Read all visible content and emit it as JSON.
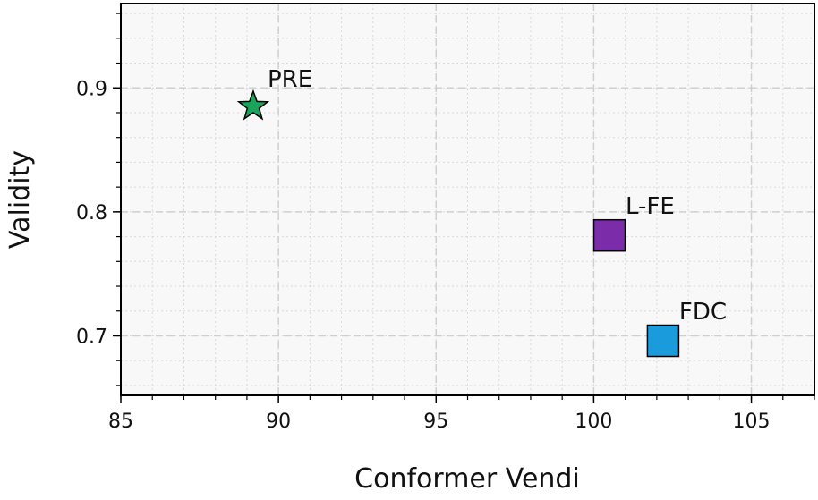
{
  "chart_data": {
    "type": "scatter",
    "title": "",
    "xlabel": "Conformer Vendi",
    "ylabel": "Validity",
    "xlim": [
      85,
      107
    ],
    "ylim": [
      0.652,
      0.968
    ],
    "xticks": [
      85,
      90,
      95,
      100,
      105
    ],
    "xtick_labels": [
      "85",
      "90",
      "95",
      "100",
      "105"
    ],
    "yticks": [
      0.7,
      0.8,
      0.9
    ],
    "ytick_labels": [
      "0.7",
      "0.8",
      "0.9"
    ],
    "grid": true,
    "minor_grid": true,
    "background": "#f8f8f8",
    "points": [
      {
        "label": "PRE",
        "x": 89.2,
        "y": 0.885,
        "marker": "star",
        "color": "#1aa35a"
      },
      {
        "label": "L-FE",
        "x": 100.5,
        "y": 0.781,
        "marker": "square",
        "color": "#7b2ca8"
      },
      {
        "label": "FDC",
        "x": 102.2,
        "y": 0.696,
        "marker": "square",
        "color": "#1a9bdc"
      }
    ]
  }
}
